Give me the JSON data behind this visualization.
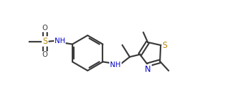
{
  "bg_color": "#ffffff",
  "line_color": "#3a3a3a",
  "S_color": "#b8860b",
  "N_color": "#0000cc",
  "bond_lw": 1.6,
  "figsize": [
    3.6,
    1.55
  ],
  "dpi": 100,
  "xlim": [
    0,
    10
  ],
  "ylim": [
    0,
    4.3
  ]
}
